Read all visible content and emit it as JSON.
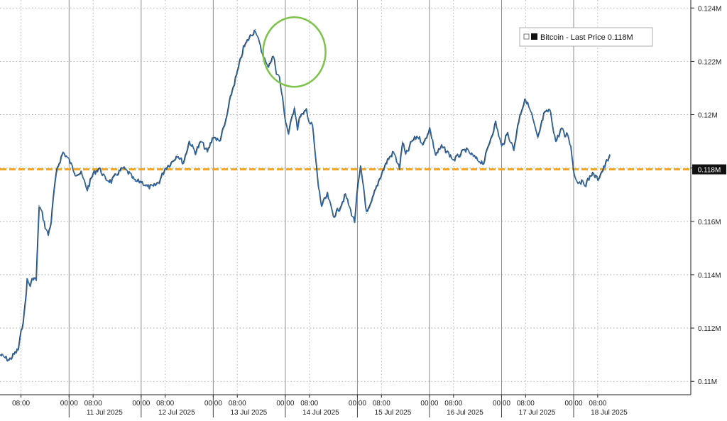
{
  "chart_data": {
    "type": "line",
    "title": "",
    "xlabel": "",
    "ylabel": "",
    "ylim": [
      0.1095,
      0.1243
    ],
    "y_unit_suffix": "M",
    "y_ticks": [
      {
        "value": 0.11,
        "label": "0.11M"
      },
      {
        "value": 0.112,
        "label": "0.112M"
      },
      {
        "value": 0.114,
        "label": "0.114M"
      },
      {
        "value": 0.116,
        "label": "0.116M"
      },
      {
        "value": 0.118,
        "label": "0.118M"
      },
      {
        "value": 0.12,
        "label": "0.12M"
      },
      {
        "value": 0.122,
        "label": "0.122M"
      },
      {
        "value": 0.124,
        "label": "0.124M"
      }
    ],
    "x_range_hours": [
      -7,
      223
    ],
    "x_ticks": [
      {
        "hour": 0,
        "label": "08:00"
      },
      {
        "hour": 16,
        "label": "00:00"
      },
      {
        "hour": 24,
        "label": "08:00"
      },
      {
        "hour": 40,
        "label": "00:00"
      },
      {
        "hour": 48,
        "label": "08:00"
      },
      {
        "hour": 64,
        "label": "00:00"
      },
      {
        "hour": 72,
        "label": "08:00"
      },
      {
        "hour": 88,
        "label": "00:00"
      },
      {
        "hour": 96,
        "label": "08:00"
      },
      {
        "hour": 112,
        "label": "00:00"
      },
      {
        "hour": 120,
        "label": "08:00"
      },
      {
        "hour": 136,
        "label": "00:00"
      },
      {
        "hour": 144,
        "label": "08:00"
      },
      {
        "hour": 160,
        "label": "00:00"
      },
      {
        "hour": 168,
        "label": "08:00"
      },
      {
        "hour": 184,
        "label": "00:00"
      },
      {
        "hour": 192,
        "label": "08:00"
      }
    ],
    "date_labels": [
      {
        "hour": 16,
        "label": "11 Jul 2025"
      },
      {
        "hour": 40,
        "label": "12 Jul 2025"
      },
      {
        "hour": 64,
        "label": "13 Jul 2025"
      },
      {
        "hour": 88,
        "label": "14 Jul 2025"
      },
      {
        "hour": 112,
        "label": "15 Jul 2025"
      },
      {
        "hour": 136,
        "label": "16 Jul 2025"
      },
      {
        "hour": 160,
        "label": "17 Jul 2025"
      },
      {
        "hour": 184,
        "label": "18 Jul 2025"
      }
    ],
    "grid": {
      "vertical_major": "solid",
      "vertical_minor": "dashed",
      "horizontal": "dashed"
    },
    "legend_position": "top-right",
    "series": [
      {
        "name": "Bitcoin - Last Price 0.118M",
        "color": "#2c6fb7",
        "x": [
          -7,
          -4,
          -1,
          1,
          2,
          3,
          4,
          5,
          6,
          7,
          8,
          9,
          10,
          11,
          12,
          14,
          16,
          18,
          20,
          22,
          24,
          26,
          28,
          30,
          32,
          34,
          36,
          38,
          40,
          42,
          44,
          46,
          48,
          50,
          52,
          54,
          56,
          58,
          60,
          62,
          64,
          66,
          68,
          70,
          72,
          74,
          76,
          78,
          80,
          82,
          84,
          85,
          86,
          87,
          88,
          89,
          90,
          91,
          92,
          93,
          94,
          95,
          96,
          97,
          98,
          99,
          100,
          102,
          104,
          106,
          108,
          110,
          111,
          112,
          113,
          114,
          115,
          116,
          118,
          120,
          122,
          124,
          126,
          127,
          128,
          129,
          130,
          132,
          134,
          136,
          138,
          140,
          142,
          144,
          146,
          148,
          150,
          152,
          154,
          156,
          158,
          160,
          162,
          164,
          166,
          168,
          170,
          172,
          174,
          176,
          178,
          180,
          181,
          182,
          183,
          184,
          185,
          186,
          188,
          190,
          192,
          194,
          196
        ],
        "values": [
          0.111,
          0.1108,
          0.1112,
          0.1125,
          0.1138,
          0.1136,
          0.1139,
          0.1138,
          0.1166,
          0.1163,
          0.1158,
          0.1155,
          0.116,
          0.1172,
          0.118,
          0.1186,
          0.1183,
          0.1178,
          0.1178,
          0.1172,
          0.1178,
          0.118,
          0.1176,
          0.1175,
          0.1178,
          0.118,
          0.1178,
          0.1175,
          0.1175,
          0.1173,
          0.1173,
          0.1175,
          0.118,
          0.1182,
          0.1185,
          0.1182,
          0.119,
          0.1186,
          0.119,
          0.1186,
          0.1192,
          0.119,
          0.1197,
          0.1208,
          0.1216,
          0.1225,
          0.1229,
          0.1232,
          0.1224,
          0.1218,
          0.1222,
          0.1216,
          0.1214,
          0.1206,
          0.1198,
          0.1193,
          0.1198,
          0.1203,
          0.1195,
          0.12,
          0.12,
          0.1202,
          0.1197,
          0.1196,
          0.1184,
          0.1173,
          0.1166,
          0.117,
          0.1162,
          0.1165,
          0.117,
          0.1163,
          0.116,
          0.1172,
          0.118,
          0.1173,
          0.1163,
          0.1165,
          0.1172,
          0.1178,
          0.1183,
          0.1186,
          0.118,
          0.119,
          0.1185,
          0.1187,
          0.119,
          0.1192,
          0.1189,
          0.1195,
          0.1185,
          0.1188,
          0.1186,
          0.1183,
          0.1185,
          0.1187,
          0.1185,
          0.1183,
          0.1182,
          0.119,
          0.1197,
          0.1188,
          0.1193,
          0.1187,
          0.12,
          0.1206,
          0.12,
          0.1191,
          0.12,
          0.1202,
          0.119,
          0.1195,
          0.1192,
          0.1193,
          0.1188,
          0.1179,
          0.1175,
          0.1175,
          0.1174,
          0.1178,
          0.1176,
          0.118,
          0.1185
        ],
        "last_value": 0.118
      }
    ],
    "annotations": [
      {
        "type": "horizontal-line",
        "value": 0.11795,
        "color": "#f5a623",
        "style": "dashed",
        "label": "0.118M",
        "x_start_hour": -7
      },
      {
        "type": "circle",
        "x_hour": 91,
        "y_value": 0.12235,
        "color": "#7dc34a"
      }
    ]
  }
}
